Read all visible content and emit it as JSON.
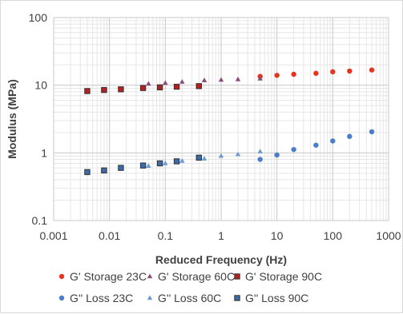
{
  "chart_data": {
    "type": "scatter",
    "title": "",
    "xlabel": "Reduced Frequency (Hz)",
    "ylabel": "Modulus (MPa)",
    "x_scale": "log",
    "y_scale": "log",
    "xlim": [
      0.001,
      1000
    ],
    "ylim": [
      0.1,
      100
    ],
    "x_ticks": [
      "0.001",
      "0.01",
      "0.1",
      "1",
      "10",
      "100",
      "1000"
    ],
    "y_ticks": [
      "0.1",
      "1",
      "10",
      "100"
    ],
    "grid": true,
    "legend_position": "bottom",
    "series": [
      {
        "name": "G' Storage 23C",
        "marker": "circle",
        "color": "#e8331f",
        "x": [
          5,
          10,
          20,
          50,
          100,
          200,
          500
        ],
        "y": [
          13.5,
          14.0,
          14.5,
          15.0,
          15.8,
          16.2,
          16.8
        ]
      },
      {
        "name": "G' Storage 60C",
        "marker": "triangle",
        "color": "#8a4a7a",
        "x": [
          0.05,
          0.1,
          0.2,
          0.5,
          1,
          2,
          5
        ],
        "y": [
          10.5,
          10.8,
          11.2,
          11.8,
          12.0,
          12.2,
          12.5
        ]
      },
      {
        "name": "G' Storage 90C",
        "marker": "square",
        "color": "#b52020",
        "x": [
          0.004,
          0.008,
          0.016,
          0.04,
          0.08,
          0.16,
          0.4
        ],
        "y": [
          8.2,
          8.5,
          8.7,
          9.1,
          9.3,
          9.5,
          9.7
        ]
      },
      {
        "name": "G'' Loss 23C",
        "marker": "circle",
        "color": "#4a7ec8",
        "x": [
          5,
          10,
          20,
          50,
          100,
          200,
          500
        ],
        "y": [
          0.8,
          0.93,
          1.12,
          1.3,
          1.5,
          1.75,
          2.05
        ]
      },
      {
        "name": "G'' Loss 60C",
        "marker": "triangle",
        "color": "#6a9ad0",
        "x": [
          0.05,
          0.1,
          0.2,
          0.5,
          1,
          2,
          5
        ],
        "y": [
          0.64,
          0.7,
          0.76,
          0.82,
          0.9,
          0.95,
          1.05
        ]
      },
      {
        "name": "G'' Loss 90C",
        "marker": "square",
        "color": "#3d6aa8",
        "x": [
          0.004,
          0.008,
          0.016,
          0.04,
          0.08,
          0.16,
          0.4
        ],
        "y": [
          0.52,
          0.55,
          0.6,
          0.65,
          0.7,
          0.75,
          0.85
        ]
      }
    ]
  }
}
